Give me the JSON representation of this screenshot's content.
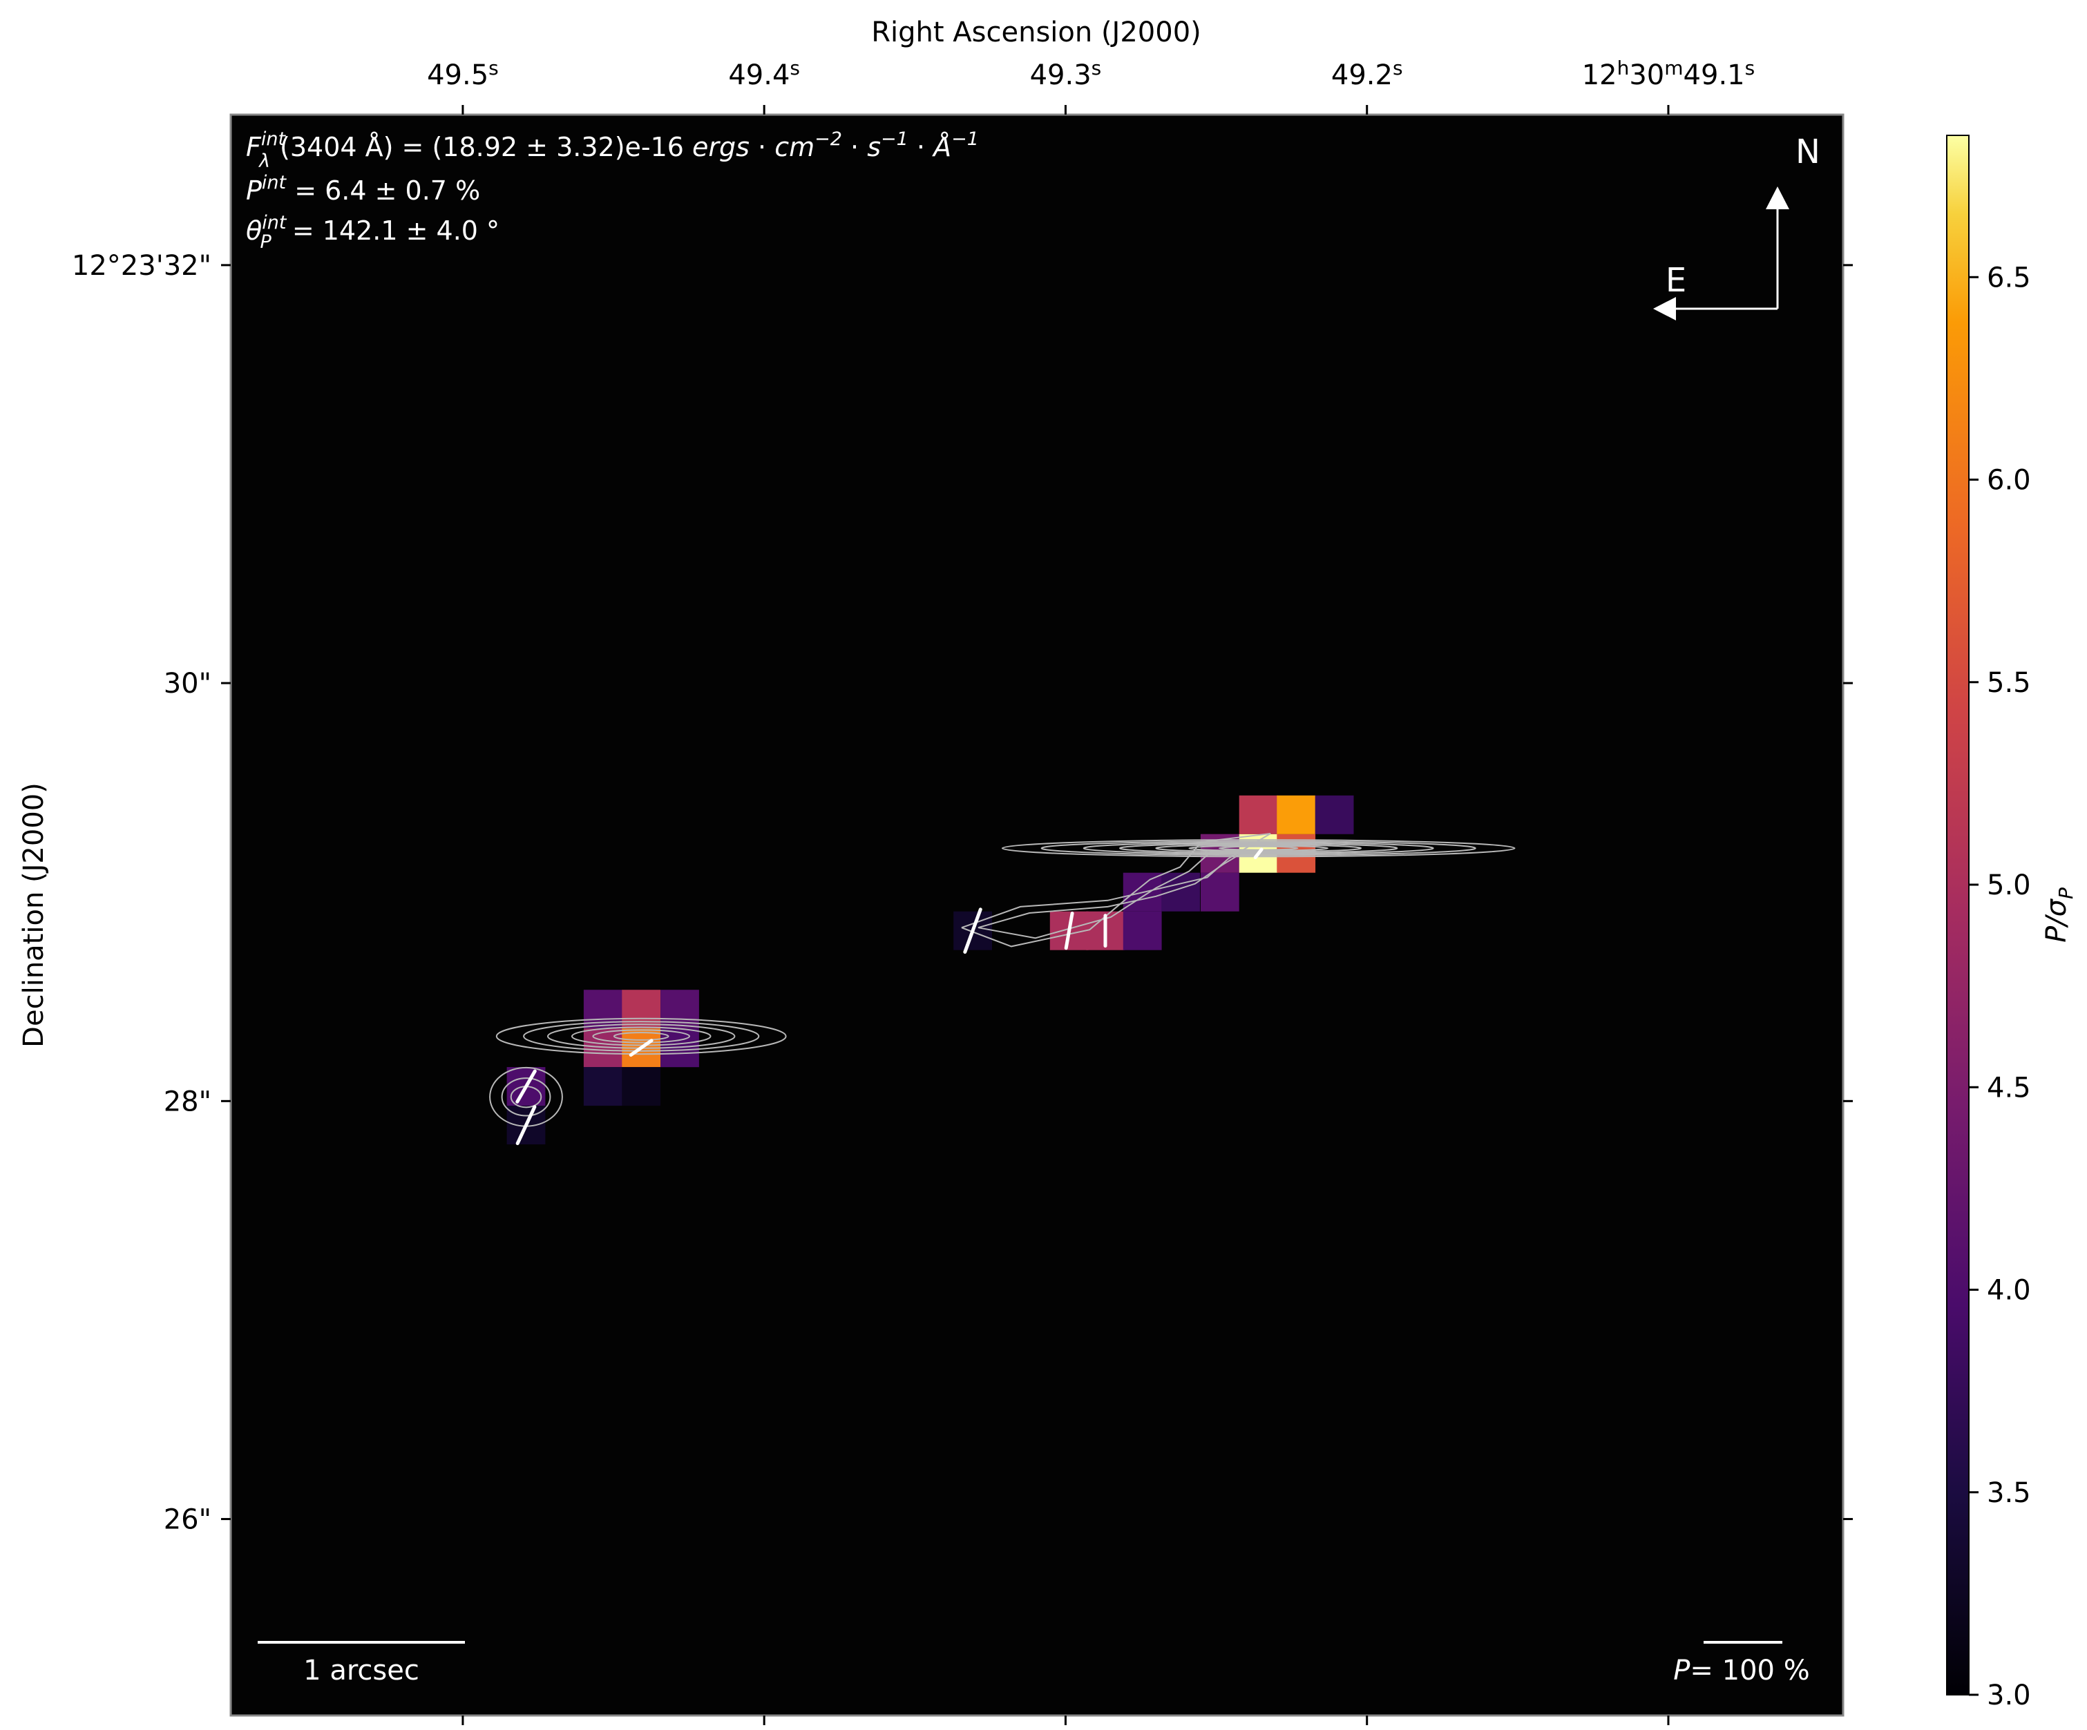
{
  "chart_data": {
    "type": "heatmap",
    "title": "",
    "xlabel": "Right Ascension (J2000)",
    "ylabel": "Declination (J2000)",
    "x_ticks": [
      {
        "value": 49.5,
        "label_main": "49.5",
        "label_sup": "s"
      },
      {
        "value": 49.4,
        "label_main": "49.4",
        "label_sup": "s"
      },
      {
        "value": 49.3,
        "label_main": "49.3",
        "label_sup": "s"
      },
      {
        "value": 49.2,
        "label_main": "49.2",
        "label_sup": "s"
      },
      {
        "value": 49.1,
        "label_parts": [
          [
            "12",
            ""
          ],
          [
            "h",
            "sup"
          ],
          [
            "30",
            ""
          ],
          [
            "m",
            "sup"
          ],
          [
            "49.1",
            ""
          ],
          [
            "s",
            "sup"
          ]
        ]
      }
    ],
    "y_ticks": [
      {
        "value": 32,
        "label": "12°23'32\""
      },
      {
        "value": 30,
        "label": "30\""
      },
      {
        "value": 28,
        "label": "28\""
      },
      {
        "value": 26,
        "label": "26\""
      }
    ],
    "xlim": [
      49.577,
      49.042
    ],
    "ylim": [
      25.06,
      32.72
    ],
    "colorbar": {
      "label": "P/σ_P",
      "label_main": "P/σ",
      "label_sub": "P",
      "range": [
        3.0,
        6.85
      ],
      "ticks": [
        "3.0",
        "3.5",
        "4.0",
        "4.5",
        "5.0",
        "5.5",
        "6.0",
        "6.5"
      ],
      "colormap": "inferno"
    },
    "annotations": {
      "flux_line": "F_λ^int(3404 Å) = (18.92 ± 3.32)e-16 ergs·cm⁻²·s⁻¹·Å⁻¹",
      "flux_sym": "F",
      "flux_sub": "λ",
      "flux_sup": "int",
      "flux_text": "(3404 Å) = (18.92 ± 3.32)e-16 ",
      "flux_units": [
        "ergs",
        "cm",
        "−2",
        "s",
        "−1",
        "Å",
        "−1"
      ],
      "pol_line": "P^int = 6.4 ± 0.7 %",
      "pol_sym": "P",
      "pol_sup": "int",
      "pol_text": " = 6.4 ± 0.7 %",
      "angle_line": "θ_P^int = 142.1 ± 4.0 °",
      "angle_sym": "θ",
      "angle_sub": "P",
      "angle_sup": "int",
      "angle_text": " = 142.1 ± 4.0 °",
      "north": "N",
      "east": "E",
      "scale_bar": "1 arcsec",
      "pol_scale": "P= 100 %",
      "pol_scale_sym": "P",
      "pol_scale_text": "= 100 %"
    },
    "pixels": [
      {
        "ra": 49.3308,
        "dec": 28.815,
        "v": 3.3
      },
      {
        "ra": 49.2988,
        "dec": 28.815,
        "v": 5.0
      },
      {
        "ra": 49.2868,
        "dec": 28.815,
        "v": 5.0
      },
      {
        "ra": 49.2745,
        "dec": 28.815,
        "v": 4.0
      },
      {
        "ra": 49.2745,
        "dec": 29.0,
        "v": 4.0
      },
      {
        "ra": 49.2618,
        "dec": 29.0,
        "v": 3.8
      },
      {
        "ra": 49.2488,
        "dec": 29.0,
        "v": 4.1
      },
      {
        "ra": 49.2488,
        "dec": 29.185,
        "v": 4.4
      },
      {
        "ra": 49.236,
        "dec": 29.185,
        "v": 6.85
      },
      {
        "ra": 49.2235,
        "dec": 29.185,
        "v": 5.6
      },
      {
        "ra": 49.236,
        "dec": 29.37,
        "v": 5.2
      },
      {
        "ra": 49.2235,
        "dec": 29.37,
        "v": 6.4
      },
      {
        "ra": 49.2108,
        "dec": 29.37,
        "v": 3.8
      },
      {
        "ra": 49.4535,
        "dec": 28.44,
        "v": 4.1
      },
      {
        "ra": 49.4408,
        "dec": 28.44,
        "v": 5.1
      },
      {
        "ra": 49.428,
        "dec": 28.44,
        "v": 4.1
      },
      {
        "ra": 49.4535,
        "dec": 28.255,
        "v": 4.8
      },
      {
        "ra": 49.4408,
        "dec": 28.255,
        "v": 6.1
      },
      {
        "ra": 49.428,
        "dec": 28.255,
        "v": 4.0
      },
      {
        "ra": 49.4535,
        "dec": 28.07,
        "v": 3.4
      },
      {
        "ra": 49.4408,
        "dec": 28.07,
        "v": 3.2
      },
      {
        "ra": 49.479,
        "dec": 28.07,
        "v": 4.0
      },
      {
        "ra": 49.479,
        "dec": 27.885,
        "v": 3.3
      }
    ],
    "vectors": [
      {
        "ra": 49.3308,
        "dec": 28.815,
        "p": 0.18,
        "angle": 160
      },
      {
        "ra": 49.2988,
        "dec": 28.815,
        "p": 0.14,
        "angle": 170
      },
      {
        "ra": 49.2868,
        "dec": 28.815,
        "p": 0.12,
        "angle": 180
      },
      {
        "ra": 49.479,
        "dec": 28.07,
        "p": 0.14,
        "angle": 150
      },
      {
        "ra": 49.479,
        "dec": 27.885,
        "p": 0.16,
        "angle": 155
      },
      {
        "ra": 49.4408,
        "dec": 28.255,
        "p": 0.1,
        "angle": 125
      },
      {
        "ra": 49.236,
        "dec": 29.185,
        "p": 0.04,
        "angle": 142
      }
    ],
    "contours": [
      {
        "ra": 49.236,
        "dec": 29.21,
        "levels": [
          [
            0.085,
            0.04
          ],
          [
            0.072,
            0.033
          ],
          [
            0.058,
            0.027
          ],
          [
            0.046,
            0.022
          ],
          [
            0.034,
            0.017
          ],
          [
            0.023,
            0.012
          ],
          [
            0.013,
            0.008
          ]
        ]
      },
      {
        "ra": 49.4408,
        "dec": 28.31,
        "levels": [
          [
            0.048,
            0.085
          ],
          [
            0.039,
            0.07
          ],
          [
            0.031,
            0.057
          ],
          [
            0.023,
            0.043
          ],
          [
            0.016,
            0.03
          ],
          [
            0.009,
            0.018
          ]
        ]
      },
      {
        "ra": 49.479,
        "dec": 28.02,
        "levels": [
          [
            0.012,
            0.14
          ],
          [
            0.008,
            0.09
          ],
          [
            0.005,
            0.05
          ]
        ]
      }
    ],
    "jet_contours": [
      [
        [
          49.3345,
          28.83
        ],
        [
          49.315,
          28.93
        ],
        [
          49.286,
          28.96
        ],
        [
          49.268,
          29.02
        ],
        [
          49.253,
          29.07
        ],
        [
          49.246,
          29.16
        ],
        [
          49.232,
          29.28
        ],
        [
          49.255,
          29.24
        ],
        [
          49.262,
          29.12
        ],
        [
          49.272,
          29.06
        ],
        [
          49.278,
          28.99
        ],
        [
          49.292,
          28.82
        ],
        [
          49.318,
          28.74
        ],
        [
          49.3345,
          28.83
        ]
      ],
      [
        [
          49.329,
          28.83
        ],
        [
          49.312,
          28.9
        ],
        [
          49.286,
          28.93
        ],
        [
          49.27,
          28.98
        ],
        [
          49.257,
          29.04
        ],
        [
          49.248,
          29.13
        ],
        [
          49.24,
          29.2
        ],
        [
          49.252,
          29.19
        ],
        [
          49.259,
          29.1
        ],
        [
          49.27,
          29.02
        ],
        [
          49.285,
          28.88
        ],
        [
          49.31,
          28.78
        ],
        [
          49.329,
          28.83
        ]
      ]
    ]
  }
}
